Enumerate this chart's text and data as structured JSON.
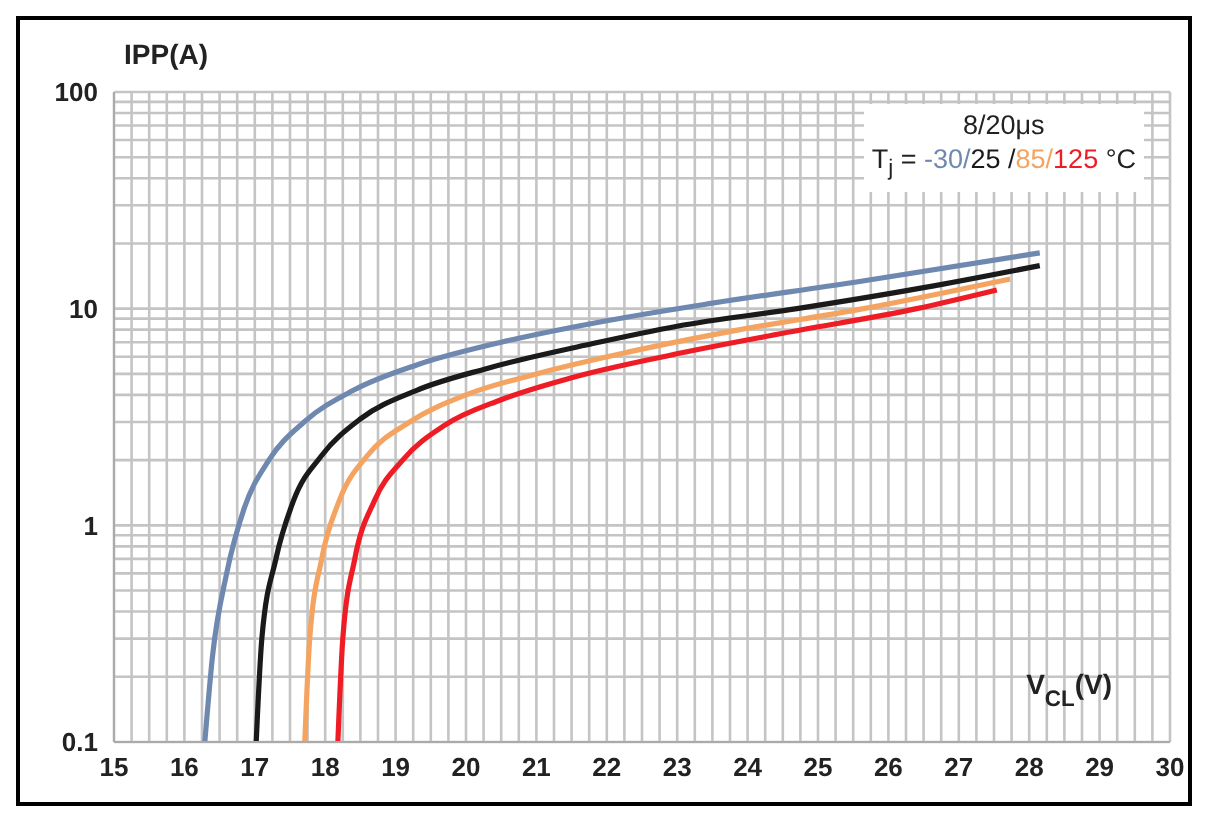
{
  "chart_data": {
    "type": "line",
    "ylabel": "IPP(A)",
    "xlabel": "V$_{CL}$(V)",
    "legend_title": "T$_{j}$ =",
    "annotations": [
      "8/20μs",
      "°C"
    ],
    "log": "y",
    "grid": true,
    "legend": "top right",
    "xlim": [
      15,
      30
    ],
    "xticks": [
      15,
      16,
      17,
      18,
      19,
      20,
      21,
      22,
      23,
      24,
      25,
      26,
      27,
      28,
      29,
      30
    ],
    "ylim": [
      0.1,
      100
    ],
    "yticks": [
      0.1,
      1,
      10,
      100
    ],
    "series": [
      {
        "name": "-30/",
        "color": "#6f88b0",
        "x": [
          16.29,
          16.4,
          16.6,
          16.85,
          17.2,
          17.7,
          18.4,
          19.3,
          20.5,
          22,
          23.5,
          25.5,
          28.15
        ],
        "values": [
          0.1,
          0.25,
          0.6,
          1.2,
          2,
          3,
          4.2,
          5.5,
          7,
          8.8,
          10.6,
          13.2,
          18.1
        ]
      },
      {
        "name": "25 /",
        "color": "#1a1a1a",
        "x": [
          17.02,
          17.1,
          17.3,
          17.55,
          17.95,
          18.5,
          19.3,
          20.3,
          21.8,
          23,
          24.7,
          26.5,
          28.15
        ],
        "values": [
          0.1,
          0.3,
          0.7,
          1.3,
          2.1,
          3.1,
          4.2,
          5.3,
          6.9,
          8.3,
          10,
          12.5,
          15.8
        ]
      },
      {
        "name": "85/",
        "color": "#f4a460",
        "x": [
          17.71,
          17.78,
          17.95,
          18.2,
          18.6,
          19.2,
          20,
          21,
          22.3,
          23.8,
          25.65,
          27.73
        ],
        "values": [
          0.1,
          0.3,
          0.7,
          1.3,
          2.1,
          3,
          4,
          5,
          6.3,
          7.9,
          10,
          13.7
        ]
      },
      {
        "name": "125",
        "color": "#ee1c25",
        "x": [
          18.18,
          18.25,
          18.42,
          18.7,
          19.1,
          19.7,
          20.5,
          21.5,
          22.9,
          24.5,
          26.4,
          27.54
        ],
        "values": [
          0.1,
          0.3,
          0.7,
          1.3,
          2,
          2.9,
          3.8,
          4.8,
          6.1,
          7.7,
          10,
          12.2
        ]
      }
    ]
  }
}
